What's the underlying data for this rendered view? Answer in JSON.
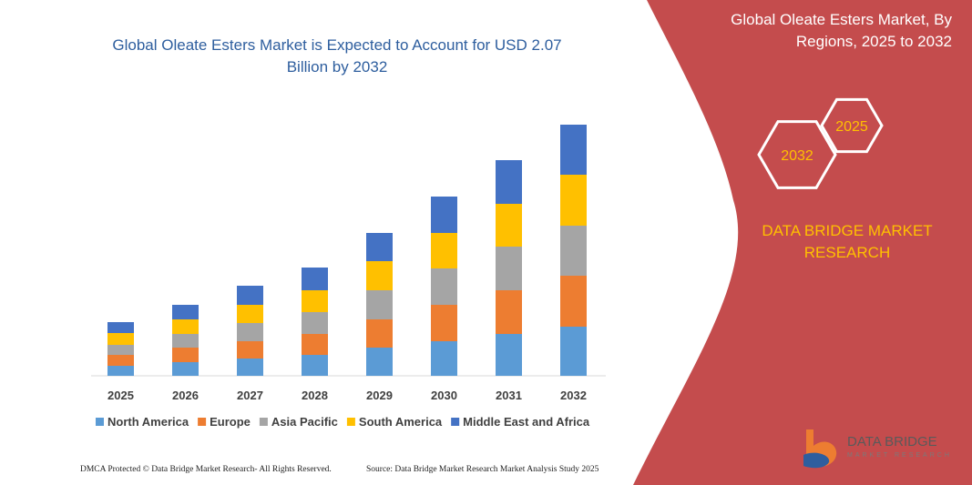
{
  "chart_data": {
    "type": "stacked-bar",
    "title": "Global Oleate Esters Market is Expected to Account for USD 2.07 Billion by 2032",
    "categories": [
      "2025",
      "2026",
      "2027",
      "2028",
      "2029",
      "2030",
      "2031",
      "2032"
    ],
    "series": [
      {
        "name": "North America",
        "color": "#5b9bd5",
        "values": [
          11,
          15,
          19,
          23,
          31,
          38,
          46,
          54
        ]
      },
      {
        "name": "Europe",
        "color": "#ed7d31",
        "values": [
          12,
          16,
          19,
          23,
          31,
          40,
          48,
          56
        ]
      },
      {
        "name": "Asia Pacific",
        "color": "#a5a5a5",
        "values": [
          11,
          15,
          20,
          24,
          32,
          40,
          48,
          55
        ]
      },
      {
        "name": "South America",
        "color": "#ffc000",
        "values": [
          13,
          16,
          20,
          24,
          32,
          39,
          47,
          56
        ]
      },
      {
        "name": "Middle East and Africa",
        "color": "#4472c4",
        "values": [
          12,
          16,
          21,
          25,
          31,
          40,
          48,
          55
        ]
      }
    ],
    "legend": "bottom"
  },
  "panel": {
    "title": "Global Oleate Esters Market, By Regions, 2025 to 2032",
    "hex_start": "2025",
    "hex_end": "2032",
    "brand": "DATA BRIDGE MARKET RESEARCH"
  },
  "logo": {
    "name": "DATA BRIDGE",
    "tagline": "MARKET RESEARCH"
  },
  "footer": {
    "left": "DMCA Protected © Data Bridge Market Research-  All Rights Reserved.",
    "right": "Source: Data Bridge Market Research  Market Analysis Study 2025"
  }
}
